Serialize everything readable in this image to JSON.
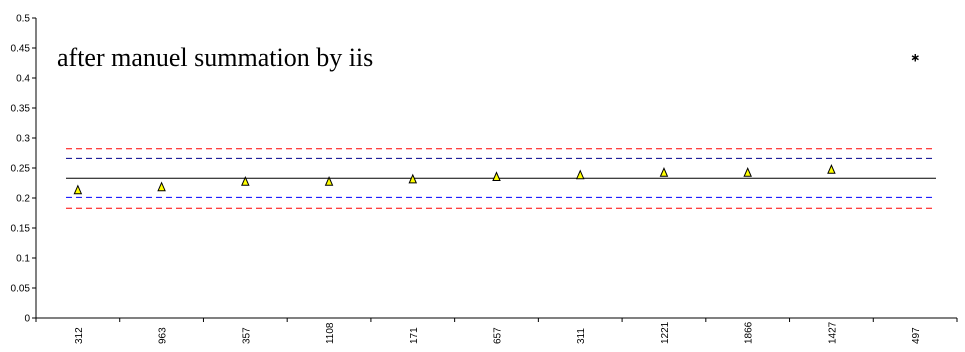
{
  "chart_data": {
    "type": "scatter",
    "title": "",
    "xlabel": "",
    "ylabel": "",
    "annotation": "after manuel summation by iis",
    "categories": [
      "312",
      "963",
      "357",
      "1108",
      "171",
      "657",
      "311",
      "1221",
      "1866",
      "1427",
      "497"
    ],
    "ylim": [
      0,
      0.5
    ],
    "y_ticks": [
      "0",
      "0.05",
      "0.1",
      "0.15",
      "0.2",
      "0.25",
      "0.3",
      "0.35",
      "0.4",
      "0.45",
      "0.5"
    ],
    "grid": false,
    "legend": "none",
    "series": [
      {
        "marker": "triangle",
        "color": "#ffff00",
        "values": [
          0.213,
          0.218,
          0.227,
          0.227,
          0.231,
          0.235,
          0.238,
          0.242,
          0.242,
          0.247,
          null
        ]
      },
      {
        "marker": "asterisk",
        "color": "#000000",
        "values": [
          null,
          null,
          null,
          null,
          null,
          null,
          null,
          null,
          null,
          null,
          0.434
        ]
      }
    ],
    "reference_lines": [
      {
        "value": 0.233,
        "style": "solid",
        "color": "#000000"
      },
      {
        "value": 0.266,
        "style": "dashed",
        "color": "#00008b"
      },
      {
        "value": 0.201,
        "style": "dashed",
        "color": "#0000ff"
      },
      {
        "value": 0.282,
        "style": "dashed",
        "color": "#ff0000"
      },
      {
        "value": 0.183,
        "style": "dashed",
        "color": "#ff0000"
      }
    ]
  }
}
